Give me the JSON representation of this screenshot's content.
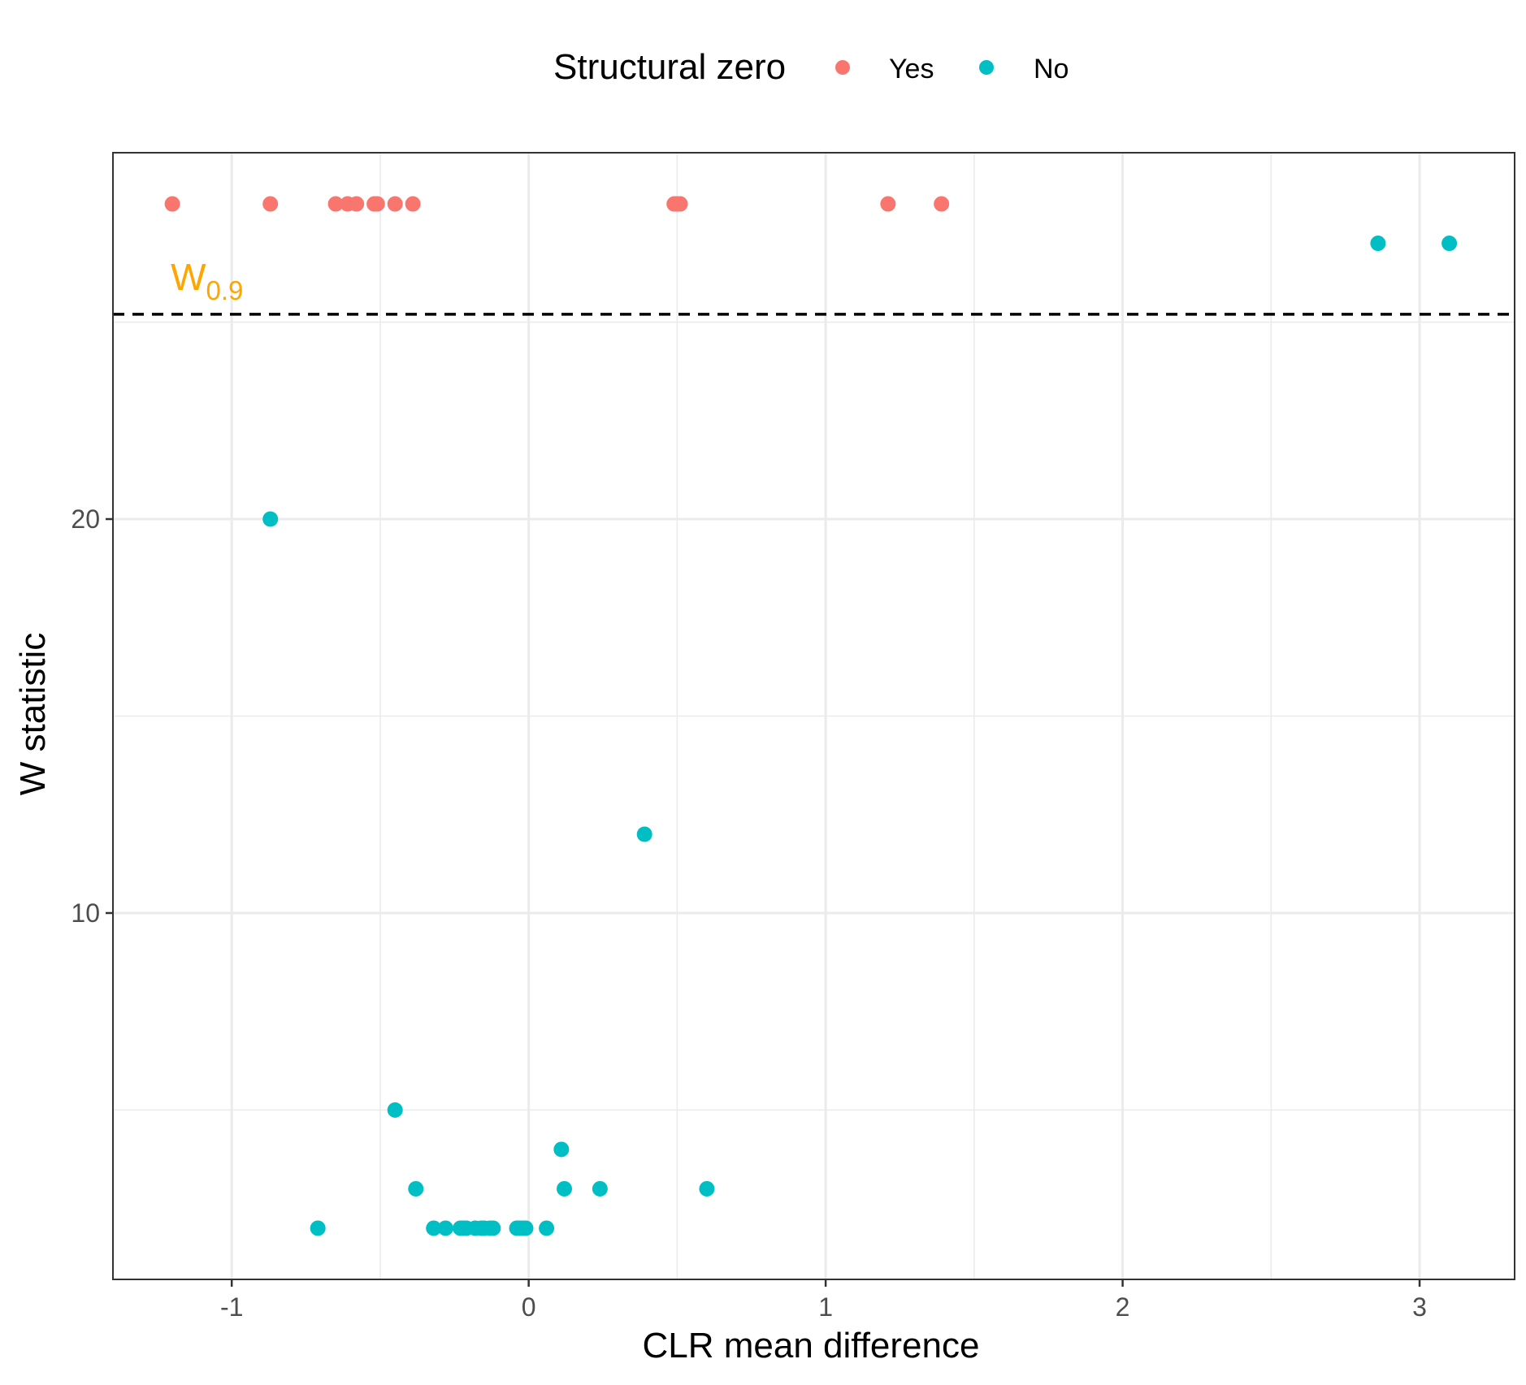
{
  "chart_data": {
    "type": "scatter",
    "xlabel": "CLR mean difference",
    "ylabel": "W statistic",
    "xlim": [
      -1.4,
      3.32
    ],
    "ylim": [
      0.7,
      29.3
    ],
    "x_ticks": [
      -1,
      0,
      1,
      2,
      3
    ],
    "x_tick_labels": [
      "-1",
      "0",
      "1",
      "2",
      "3"
    ],
    "y_ticks": [
      10,
      20
    ],
    "y_tick_labels": [
      "10",
      "20"
    ],
    "x_minor_gridlines": [
      -0.5,
      0.5,
      1.5,
      2.5
    ],
    "y_minor_gridlines": [
      5,
      15,
      25
    ],
    "grid": true,
    "legend": {
      "title": "Structural zero",
      "position": "top",
      "entries": [
        {
          "label": "Yes",
          "color": "#F8766D"
        },
        {
          "label": "No",
          "color": "#00BFC4"
        }
      ]
    },
    "threshold": {
      "y": 25.2,
      "style": "dashed",
      "color": "#000000",
      "label_main": "W",
      "label_sub": "0.9",
      "label_color": "#FFA500",
      "label_x": -1.2
    },
    "series": [
      {
        "name": "Yes",
        "color": "#F8766D",
        "points": [
          [
            -1.2,
            28
          ],
          [
            -0.87,
            28
          ],
          [
            -0.65,
            28
          ],
          [
            -0.61,
            28
          ],
          [
            -0.58,
            28
          ],
          [
            -0.52,
            28
          ],
          [
            -0.51,
            28
          ],
          [
            -0.45,
            28
          ],
          [
            -0.39,
            28
          ],
          [
            0.49,
            28
          ],
          [
            0.5,
            28
          ],
          [
            0.51,
            28
          ],
          [
            1.21,
            28
          ],
          [
            1.39,
            28
          ]
        ]
      },
      {
        "name": "No",
        "color": "#00BFC4",
        "points": [
          [
            2.86,
            27
          ],
          [
            3.1,
            27
          ],
          [
            -0.87,
            20
          ],
          [
            0.39,
            12
          ],
          [
            -0.45,
            5
          ],
          [
            0.11,
            4
          ],
          [
            -0.38,
            3
          ],
          [
            0.12,
            3
          ],
          [
            0.24,
            3
          ],
          [
            0.6,
            3
          ],
          [
            -0.71,
            2
          ],
          [
            -0.32,
            2
          ],
          [
            -0.28,
            2
          ],
          [
            -0.23,
            2
          ],
          [
            -0.22,
            2
          ],
          [
            -0.21,
            2
          ],
          [
            -0.18,
            2
          ],
          [
            -0.16,
            2
          ],
          [
            -0.15,
            2
          ],
          [
            -0.13,
            2
          ],
          [
            -0.12,
            2
          ],
          [
            -0.04,
            2
          ],
          [
            -0.03,
            2
          ],
          [
            -0.02,
            2
          ],
          [
            -0.01,
            2
          ],
          [
            0.06,
            2
          ]
        ]
      }
    ]
  }
}
